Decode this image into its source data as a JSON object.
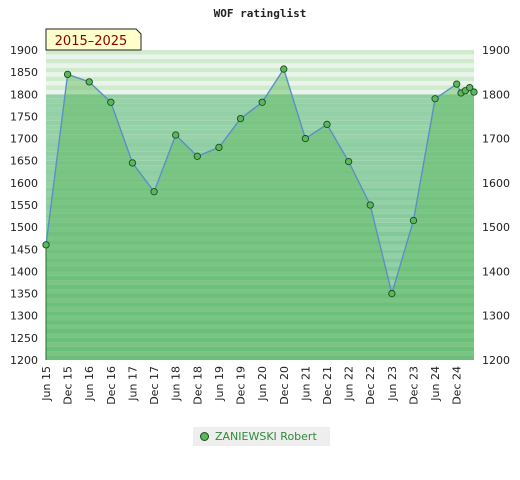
{
  "chart_data": {
    "type": "area",
    "title": "WOF ratinglist",
    "period_badge": "2015–2025",
    "ylim": [
      1200,
      1900
    ],
    "yticks": [
      1200,
      1250,
      1300,
      1350,
      1400,
      1450,
      1500,
      1550,
      1600,
      1650,
      1700,
      1750,
      1800,
      1850,
      1900
    ],
    "yticks_right": [
      1200,
      1300,
      1400,
      1500,
      1600,
      1700,
      1800,
      1900
    ],
    "xticks": [
      "Jun 15",
      "Dec 15",
      "Jun 16",
      "Dec 16",
      "Jun 17",
      "Dec 17",
      "Jun 18",
      "Dec 18",
      "Jun 19",
      "Dec 19",
      "Jun 20",
      "Dec 20",
      "Jun 21",
      "Dec 21",
      "Jun 22",
      "Dec 22",
      "Jun 23",
      "Dec 23",
      "Jun 24",
      "Dec 24"
    ],
    "series": [
      {
        "name": "ZANIEWSKI Robert",
        "color": "#5cb85c",
        "line_color": "#5b8fc7",
        "x": [
          0,
          1,
          2,
          3,
          4,
          5,
          6,
          7,
          8,
          9,
          10,
          11,
          12,
          13,
          14,
          15,
          16,
          17,
          18,
          19,
          19.2,
          19.4,
          19.6,
          19.8
        ],
        "values": [
          1460,
          1845,
          1828,
          1782,
          1645,
          1580,
          1708,
          1660,
          1680,
          1745,
          1782,
          1857,
          1700,
          1732,
          1648,
          1550,
          1350,
          1515,
          1790,
          1823,
          1803,
          1808,
          1815,
          1805
        ]
      }
    ],
    "grid": "alternating green bands",
    "legend_position": "bottom"
  }
}
